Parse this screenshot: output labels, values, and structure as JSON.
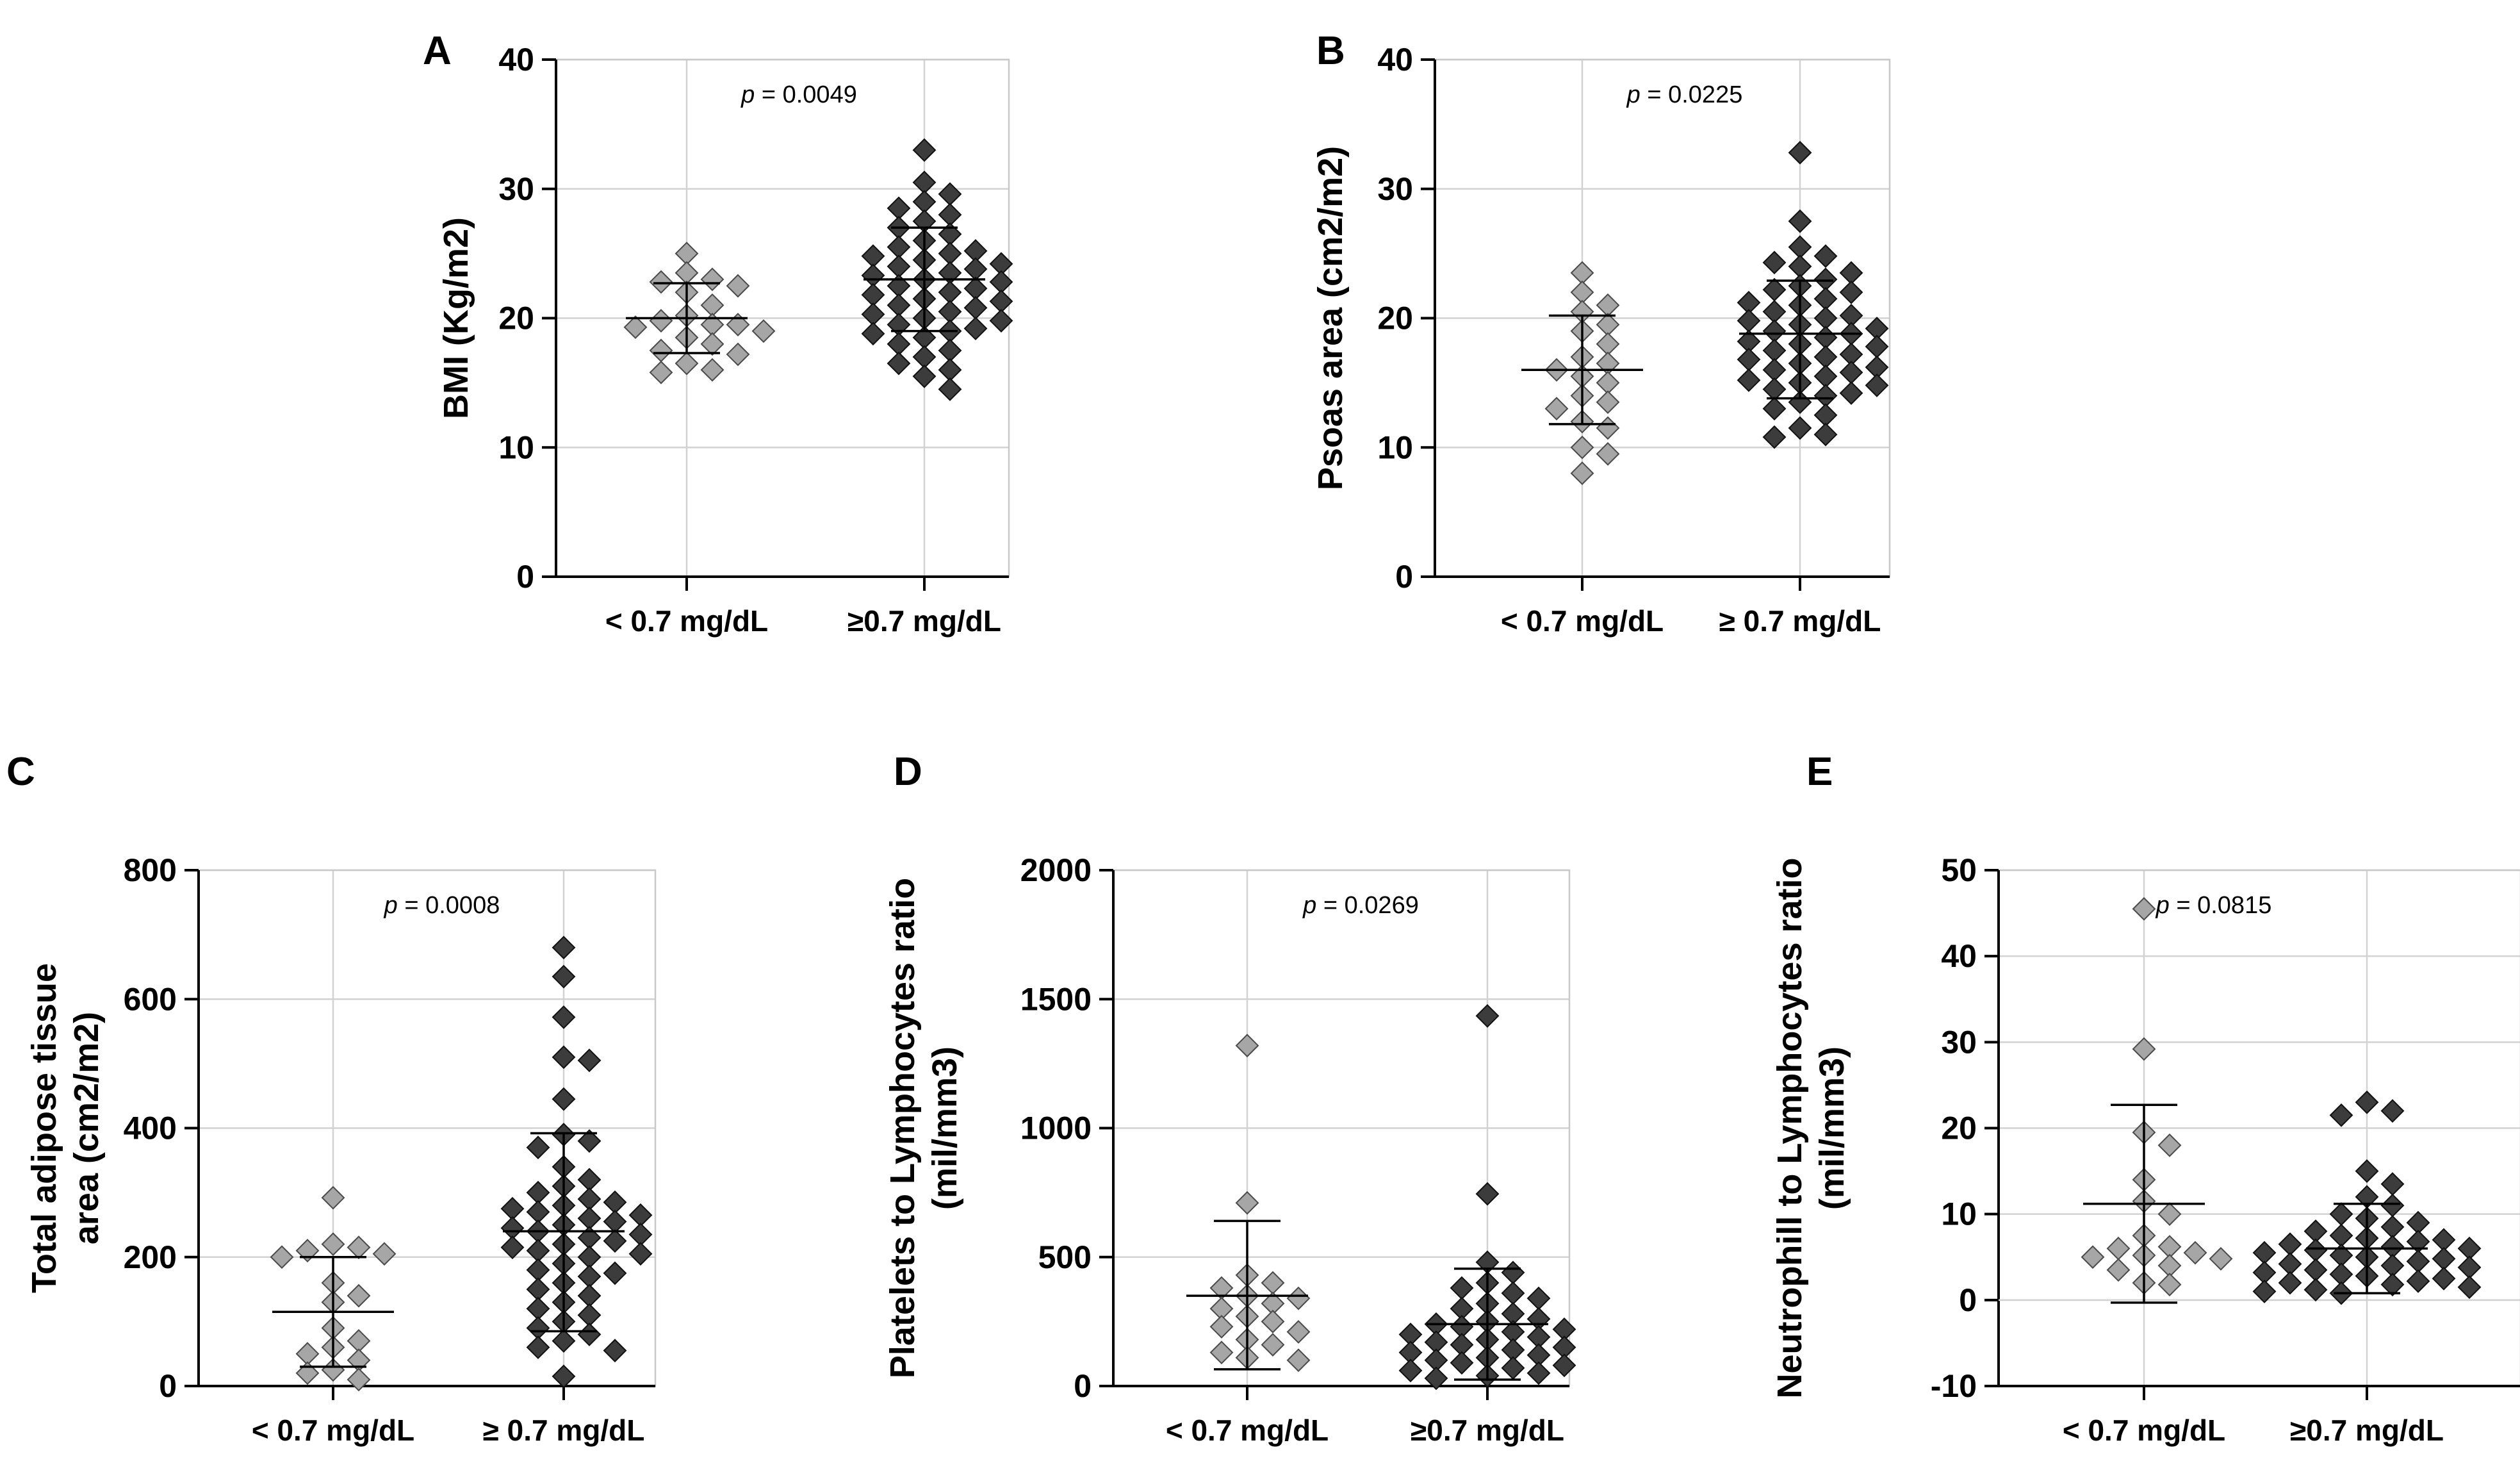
{
  "chart_data": [
    {
      "id": "A",
      "type": "scatter",
      "panel_label": "A",
      "ylabel_lines": [
        "BMI (Kg/m2)"
      ],
      "yticks": [
        0,
        10,
        20,
        30,
        40
      ],
      "ylim": [
        0,
        40
      ],
      "categories": [
        "< 0.7 mg/dL",
        "≥0.7 mg/dL"
      ],
      "pvalue": {
        "prefix": "p",
        "text": " = 0.0049"
      },
      "groups": [
        {
          "name": "< 0.7 mg/dL",
          "mean": 20.0,
          "sd_low": 17.3,
          "sd_high": 22.7,
          "points": [
            25.0,
            23.5,
            23.0,
            22.8,
            22.5,
            22.0,
            21.0,
            20.2,
            19.8,
            19.5,
            19.5,
            19.3,
            19.0,
            18.5,
            18.0,
            17.5,
            17.2,
            16.5,
            16.0,
            15.8
          ]
        },
        {
          "name": "≥0.7 mg/dL",
          "mean": 23.0,
          "sd_low": 19.0,
          "sd_high": 27.0,
          "points": [
            33.0,
            30.5,
            29.6,
            29.0,
            28.5,
            28.0,
            27.5,
            27.0,
            26.5,
            26.0,
            25.5,
            25.2,
            25.0,
            24.8,
            24.5,
            24.2,
            24.0,
            23.8,
            23.5,
            23.3,
            23.0,
            22.8,
            22.5,
            22.3,
            22.0,
            21.8,
            21.5,
            21.3,
            21.0,
            20.8,
            20.5,
            20.3,
            20.0,
            19.8,
            19.5,
            19.2,
            19.0,
            18.8,
            18.5,
            18.0,
            17.5,
            17.0,
            16.5,
            16.0,
            15.5,
            14.5
          ]
        }
      ]
    },
    {
      "id": "B",
      "type": "scatter",
      "panel_label": "B",
      "ylabel_lines": [
        "Psoas area (cm2/m2)"
      ],
      "yticks": [
        0,
        10,
        20,
        30,
        40
      ],
      "ylim": [
        0,
        40
      ],
      "categories": [
        "< 0.7 mg/dL",
        "≥ 0.7 mg/dL"
      ],
      "pvalue": {
        "prefix": "p",
        "text": " = 0.0225"
      },
      "groups": [
        {
          "name": "< 0.7 mg/dL",
          "mean": 16.0,
          "sd_low": 11.8,
          "sd_high": 20.2,
          "points": [
            23.5,
            22.0,
            21.0,
            20.5,
            19.5,
            19.0,
            18.0,
            17.0,
            16.5,
            16.0,
            15.5,
            15.0,
            14.0,
            13.5,
            13.0,
            12.0,
            11.5,
            10.0,
            9.5,
            8.0
          ]
        },
        {
          "name": "≥ 0.7 mg/dL",
          "mean": 18.8,
          "sd_low": 13.8,
          "sd_high": 22.9,
          "points": [
            32.8,
            27.5,
            25.5,
            24.8,
            24.3,
            24.0,
            23.5,
            23.0,
            22.5,
            22.2,
            22.0,
            21.5,
            21.2,
            21.0,
            20.5,
            20.2,
            20.0,
            19.8,
            19.5,
            19.2,
            19.0,
            18.8,
            18.5,
            18.2,
            18.0,
            17.8,
            17.5,
            17.2,
            17.0,
            16.8,
            16.5,
            16.2,
            16.0,
            15.8,
            15.5,
            15.2,
            15.0,
            14.8,
            14.5,
            14.2,
            14.0,
            13.5,
            13.0,
            12.5,
            11.5,
            11.0,
            10.8
          ]
        }
      ]
    },
    {
      "id": "C",
      "type": "scatter",
      "panel_label": "C",
      "ylabel_lines": [
        "Total adipose tissue",
        "area (cm2/m2)"
      ],
      "yticks": [
        0,
        200,
        400,
        600,
        800
      ],
      "ylim": [
        0,
        800
      ],
      "categories": [
        "< 0.7 mg/dL",
        "≥ 0.7 mg/dL"
      ],
      "pvalue": {
        "prefix": "p",
        "text": " = 0.0008"
      },
      "groups": [
        {
          "name": "< 0.7 mg/dL",
          "mean": 115,
          "sd_low": 30,
          "sd_high": 200,
          "points": [
            292,
            220,
            215,
            210,
            205,
            200,
            160,
            140,
            130,
            90,
            70,
            60,
            50,
            40,
            25,
            20,
            10
          ]
        },
        {
          "name": "≥ 0.7 mg/dL",
          "mean": 240,
          "sd_low": 85,
          "sd_high": 392,
          "points": [
            680,
            635,
            572,
            510,
            505,
            445,
            390,
            380,
            370,
            340,
            320,
            310,
            300,
            290,
            285,
            280,
            275,
            270,
            265,
            260,
            255,
            250,
            245,
            240,
            235,
            230,
            225,
            220,
            215,
            210,
            205,
            200,
            190,
            180,
            175,
            170,
            160,
            150,
            140,
            130,
            120,
            110,
            100,
            90,
            80,
            70,
            60,
            55,
            15
          ]
        }
      ]
    },
    {
      "id": "D",
      "type": "scatter",
      "panel_label": "D",
      "ylabel_lines": [
        "Platelets to Lymphocytes ratio",
        "(mil/mm3)"
      ],
      "yticks": [
        0,
        500,
        1000,
        1500,
        2000
      ],
      "ylim": [
        0,
        2000
      ],
      "categories": [
        "< 0.7 mg/dL",
        "≥0.7 mg/dL"
      ],
      "pvalue": {
        "prefix": "p",
        "text": " = 0.0269"
      },
      "groups": [
        {
          "name": "< 0.7 mg/dL",
          "mean": 350,
          "sd_low": 65,
          "sd_high": 640,
          "points": [
            1320,
            710,
            430,
            400,
            380,
            350,
            340,
            320,
            300,
            270,
            250,
            230,
            210,
            180,
            160,
            130,
            110,
            100
          ]
        },
        {
          "name": "≥0.7 mg/dL",
          "mean": 240,
          "sd_low": 25,
          "sd_high": 455,
          "points": [
            1435,
            745,
            480,
            440,
            400,
            380,
            360,
            340,
            320,
            300,
            280,
            260,
            250,
            240,
            230,
            220,
            210,
            200,
            190,
            180,
            170,
            160,
            150,
            140,
            130,
            120,
            110,
            100,
            90,
            80,
            70,
            60,
            50,
            40,
            30
          ]
        }
      ]
    },
    {
      "id": "E",
      "type": "scatter",
      "panel_label": "E",
      "ylabel_lines": [
        "Neutrophill to Lymphocytes ratio",
        "(mil/mm3)"
      ],
      "yticks": [
        -10,
        0,
        10,
        20,
        30,
        40,
        50
      ],
      "ylim": [
        -10,
        50
      ],
      "categories": [
        "< 0.7 mg/dL",
        "≥0.7 mg/dL"
      ],
      "pvalue": {
        "prefix": "p",
        "text": " = 0.0815"
      },
      "groups": [
        {
          "name": "< 0.7 mg/dL",
          "mean": 11.2,
          "sd_low": -0.3,
          "sd_high": 22.7,
          "points": [
            45.5,
            29.2,
            19.5,
            18.0,
            14.0,
            11.5,
            10.0,
            7.5,
            6.2,
            6.0,
            5.5,
            5.2,
            5.0,
            4.8,
            4.0,
            3.5,
            2.0,
            1.8
          ]
        },
        {
          "name": "≥0.7 mg/dL",
          "mean": 6.0,
          "sd_low": 0.8,
          "sd_high": 11.2,
          "points": [
            23.0,
            22.0,
            21.5,
            15.0,
            13.5,
            12.0,
            11.0,
            10.0,
            9.5,
            9.0,
            8.5,
            8.0,
            7.5,
            7.2,
            7.0,
            6.8,
            6.5,
            6.2,
            6.0,
            5.8,
            5.5,
            5.2,
            5.0,
            4.8,
            4.5,
            4.2,
            4.0,
            3.8,
            3.5,
            3.2,
            3.0,
            2.8,
            2.5,
            2.2,
            2.0,
            1.8,
            1.5,
            1.2,
            1.0,
            0.8
          ]
        }
      ]
    }
  ]
}
